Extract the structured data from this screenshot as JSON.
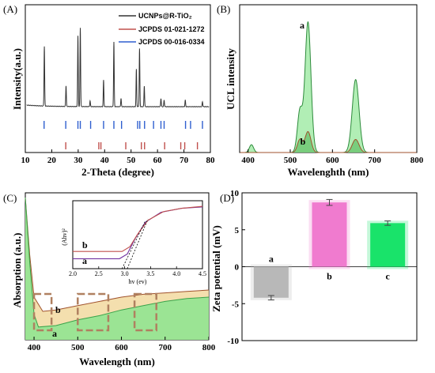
{
  "panels": {
    "A": {
      "label": "(A)",
      "chart_data": {
        "type": "line",
        "xlabel": "2-Theta (degree)",
        "ylabel": "Intensity(a.u.)",
        "xlim": [
          10,
          80
        ],
        "xticks": [
          "10",
          "20",
          "30",
          "40",
          "50",
          "60",
          "70",
          "80"
        ],
        "legend_position": "top-right",
        "series": [
          {
            "name": "UCNPs@R-TiO₂",
            "color": "#333333",
            "peaks": [
              {
                "x": 17.2,
                "h": 0.72
              },
              {
                "x": 25.4,
                "h": 0.25
              },
              {
                "x": 29.9,
                "h": 0.85
              },
              {
                "x": 30.8,
                "h": 0.95
              },
              {
                "x": 34.5,
                "h": 0.07
              },
              {
                "x": 39.6,
                "h": 0.32
              },
              {
                "x": 43.5,
                "h": 0.78
              },
              {
                "x": 46.2,
                "h": 0.1
              },
              {
                "x": 52.0,
                "h": 0.45
              },
              {
                "x": 53.2,
                "h": 0.7
              },
              {
                "x": 55.0,
                "h": 0.25
              },
              {
                "x": 61.3,
                "h": 0.1
              },
              {
                "x": 62.5,
                "h": 0.08
              },
              {
                "x": 70.5,
                "h": 0.08
              },
              {
                "x": 77.0,
                "h": 0.06
              }
            ]
          },
          {
            "name": "JCPDS 01-021-1272",
            "color": "#c0504d",
            "sticks": [
              25.3,
              37.8,
              38.6,
              48.0,
              53.9,
              55.1,
              62.7,
              68.8,
              70.3,
              75.1
            ]
          },
          {
            "name": "JCPDS 00-016-0334",
            "color": "#2f5fcf",
            "sticks": [
              17.1,
              25.3,
              29.9,
              30.8,
              34.7,
              39.6,
              43.5,
              46.4,
              52.5,
              53.3,
              55.1,
              58.5,
              61.3,
              62.5,
              70.6,
              72.5,
              77.0
            ]
          }
        ]
      }
    },
    "B": {
      "label": "(B)",
      "chart_data": {
        "type": "area",
        "xlabel": "Wavelenghth (nm)",
        "ylabel": "UCL intensity",
        "xlim": [
          380,
          800
        ],
        "xticks": [
          "400",
          "500",
          "600",
          "700",
          "800"
        ],
        "series": [
          {
            "label": "a",
            "fill": "#a8ecad",
            "stroke": "#2e8b3c",
            "peaks": [
              {
                "x": 408,
                "h": 0.06
              },
              {
                "x": 523,
                "h": 0.32
              },
              {
                "x": 542,
                "h": 1.0
              },
              {
                "x": 655,
                "h": 0.56
              }
            ]
          },
          {
            "label": "b",
            "fill": "#6cc46f",
            "stroke": "#a0522d",
            "peaks": [
              {
                "x": 523,
                "h": 0.1
              },
              {
                "x": 542,
                "h": 0.16
              },
              {
                "x": 655,
                "h": 0.1
              }
            ]
          }
        ]
      }
    },
    "C": {
      "label": "(C)",
      "chart_data": {
        "type": "area",
        "xlabel": "Wavelength (nm)",
        "ylabel": "Absorption (a.u.)",
        "xlim": [
          380,
          800
        ],
        "xticks": [
          "400",
          "500",
          "600",
          "700",
          "800"
        ],
        "series": [
          {
            "label": "a",
            "points": [
              [
                380,
                1.0
              ],
              [
                390,
                0.55
              ],
              [
                400,
                0.18
              ],
              [
                410,
                0.09
              ],
              [
                450,
                0.1
              ],
              [
                500,
                0.14
              ],
              [
                550,
                0.17
              ],
              [
                600,
                0.21
              ],
              [
                650,
                0.24
              ],
              [
                700,
                0.27
              ],
              [
                750,
                0.29
              ],
              [
                800,
                0.3
              ]
            ]
          },
          {
            "label": "b",
            "points": [
              [
                380,
                1.0
              ],
              [
                390,
                0.6
              ],
              [
                400,
                0.3
              ],
              [
                420,
                0.2
              ],
              [
                450,
                0.21
              ],
              [
                500,
                0.24
              ],
              [
                550,
                0.27
              ],
              [
                600,
                0.3
              ],
              [
                650,
                0.32
              ],
              [
                700,
                0.33
              ],
              [
                750,
                0.34
              ],
              [
                800,
                0.35
              ]
            ]
          }
        ],
        "inset": {
          "xlabel": "hv (ev)",
          "ylabel": "(Ahv)²",
          "xlim": [
            2.0,
            4.5
          ],
          "xticks": [
            "2.0",
            "2.5",
            "3.0",
            "3.5",
            "4.0",
            "4.5"
          ],
          "series": [
            {
              "label": "a",
              "color": "#7030a0",
              "points": [
                [
                  2.0,
                  0.15
                ],
                [
                  2.9,
                  0.15
                ],
                [
                  3.05,
                  0.22
                ],
                [
                  3.2,
                  0.45
                ],
                [
                  3.4,
                  0.7
                ],
                [
                  3.7,
                  0.85
                ],
                [
                  4.1,
                  0.91
                ],
                [
                  4.5,
                  0.93
                ]
              ]
            },
            {
              "label": "b",
              "color": "#c0504d",
              "points": [
                [
                  2.0,
                  0.26
                ],
                [
                  2.95,
                  0.26
                ],
                [
                  3.1,
                  0.33
                ],
                [
                  3.25,
                  0.52
                ],
                [
                  3.45,
                  0.73
                ],
                [
                  3.75,
                  0.86
                ],
                [
                  4.1,
                  0.91
                ],
                [
                  4.5,
                  0.94
                ]
              ]
            }
          ]
        }
      }
    },
    "D": {
      "label": "(D)",
      "chart_data": {
        "type": "bar",
        "ylabel": "Zeta potential (mV)",
        "ylim": [
          -10,
          10
        ],
        "yticks": [
          "-10",
          "-5",
          "0",
          "5",
          "10"
        ],
        "categories": [
          "a",
          "b",
          "c"
        ],
        "values": [
          -4.2,
          8.7,
          5.9
        ],
        "errors": [
          0.3,
          0.4,
          0.3
        ],
        "colors": [
          "#b8b8b8",
          "#f07bcf",
          "#19e36a"
        ]
      }
    }
  }
}
